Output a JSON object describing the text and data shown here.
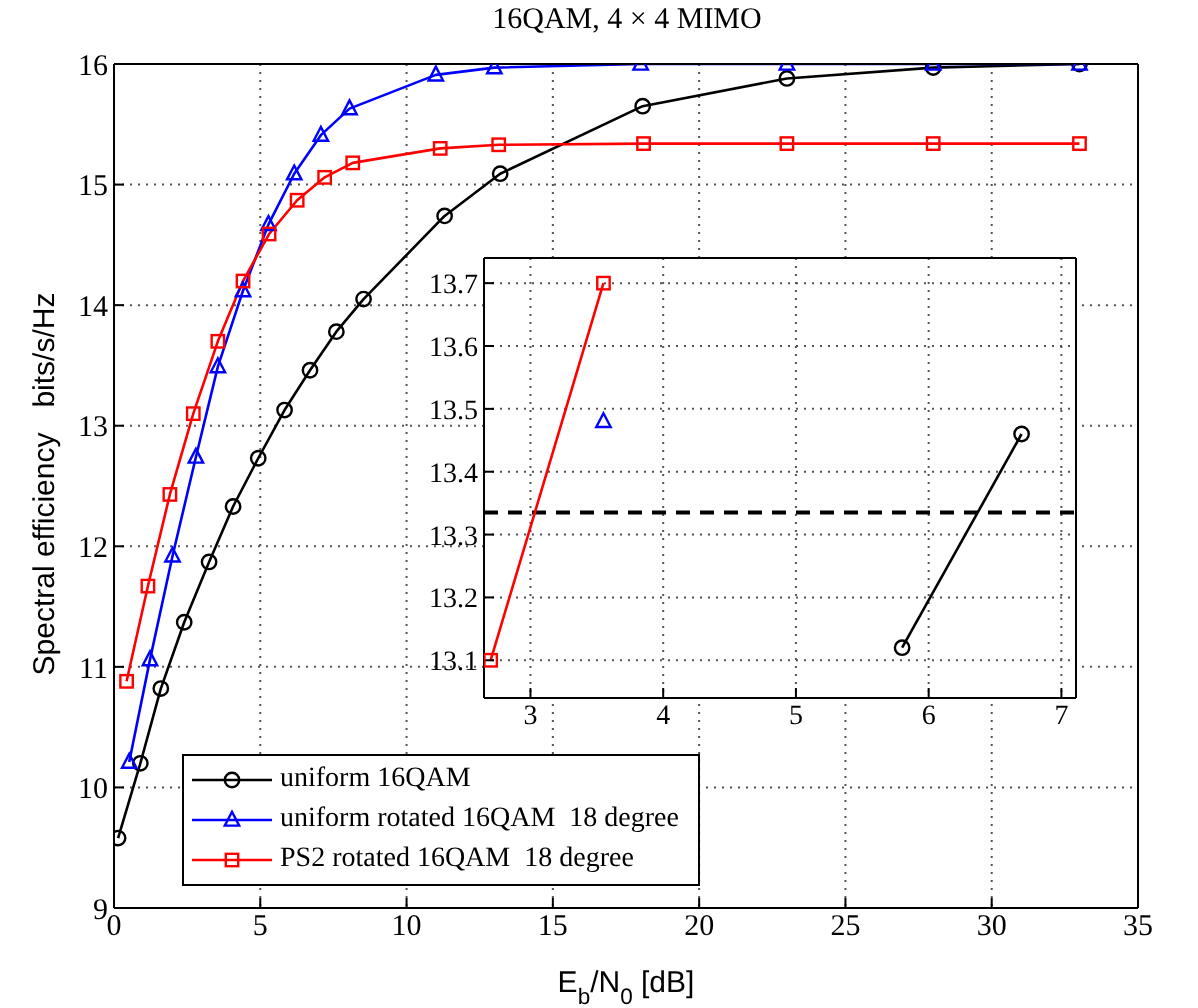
{
  "chart_data": [
    {
      "type": "line",
      "title": "16QAM, 4 × 4 MIMO",
      "xlabel": "E$_{b}$/N$_{0}$ [dB]",
      "ylabel": "Spectral efficiency   bits/s/Hz",
      "xlim": [
        0,
        35
      ],
      "xticks": [
        0,
        5,
        10,
        15,
        20,
        25,
        30,
        35
      ],
      "ylim": [
        9,
        16
      ],
      "yticks": [
        9,
        10,
        11,
        12,
        13,
        14,
        15,
        16
      ],
      "grid": true,
      "legend": "bottom left",
      "line_style": "solid",
      "series": [
        {
          "name": "uniform 16QAM",
          "color": "#000000",
          "marker": "circle",
          "x": [
            0.14,
            0.9,
            1.6,
            2.4,
            3.25,
            4.07,
            4.93,
            5.83,
            6.7,
            7.6,
            8.53,
            11.3,
            13.2,
            18.07,
            23,
            28,
            33
          ],
          "values": [
            9.58,
            10.2,
            10.82,
            11.37,
            11.87,
            12.33,
            12.73,
            13.13,
            13.46,
            13.78,
            14.05,
            14.74,
            15.09,
            15.65,
            15.88,
            15.97,
            16.0
          ]
        },
        {
          "name": "uniform rotated 16QAM  18 degree",
          "color": "#0000ff",
          "marker": "triangle",
          "x": [
            0.52,
            1.23,
            2.0,
            2.8,
            3.55,
            4.41,
            5.28,
            6.16,
            7.07,
            8.05,
            11,
            13,
            18,
            23,
            28,
            33
          ],
          "values": [
            10.21,
            11.06,
            11.92,
            12.74,
            13.49,
            14.12,
            14.67,
            15.09,
            15.41,
            15.63,
            15.91,
            15.97,
            16.0,
            16.0,
            16.0,
            16.0
          ]
        },
        {
          "name": "PS2 rotated 16QAM  18 degree",
          "color": "#ff0000",
          "marker": "square",
          "x": [
            0.43,
            1.16,
            1.91,
            2.71,
            3.55,
            4.41,
            5.3,
            6.26,
            7.2,
            8.16,
            11.15,
            13.15,
            18.1,
            23,
            28,
            33
          ],
          "values": [
            10.88,
            11.67,
            12.43,
            13.1,
            13.7,
            14.2,
            14.59,
            14.87,
            15.06,
            15.18,
            15.3,
            15.33,
            15.34,
            15.34,
            15.34,
            15.34
          ]
        }
      ]
    },
    {
      "type": "line",
      "xlim": [
        2.65,
        7.11
      ],
      "xticks": [
        3,
        4,
        5,
        6,
        7
      ],
      "ylim": [
        13.04,
        13.74
      ],
      "yticks": [
        13.1,
        13.2,
        13.3,
        13.4,
        13.5,
        13.6,
        13.7
      ],
      "grid": true,
      "line_style": "solid",
      "ref_lines": [
        {
          "axis": "y",
          "value": 13.335,
          "label": null,
          "color": "#000000",
          "line_style": "dashed"
        }
      ],
      "series": [
        {
          "color": "#000000",
          "marker": "circle",
          "x": [
            5.8,
            6.7
          ],
          "values": [
            13.12,
            13.46
          ]
        },
        {
          "color": "#0000ff",
          "marker": "triangle",
          "x": [
            3.55
          ],
          "values": [
            13.48
          ]
        },
        {
          "color": "#ff0000",
          "marker": "square",
          "x": [
            2.7,
            3.55
          ],
          "values": [
            13.1,
            13.7
          ]
        }
      ]
    }
  ]
}
